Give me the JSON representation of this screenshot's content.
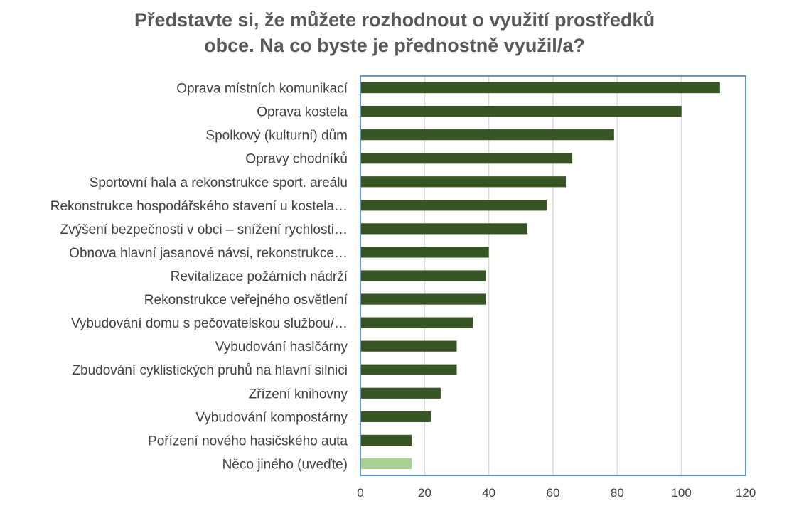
{
  "chart_data": {
    "type": "bar",
    "orientation": "horizontal",
    "title_lines": [
      "Představte si, že můžete rozhodnout o využití prostředků",
      "obce. Na co byste je přednostně využil/a?"
    ],
    "title": "Představte si, že můžete rozhodnout o využití prostředků obce. Na co byste je přednostně využil/a?",
    "xlabel": "",
    "ylabel": "",
    "categories": [
      "Oprava místních komunikací",
      "Oprava kostela",
      "Spolkový (kulturní) dům",
      "Opravy chodníků",
      "Sportovní hala a rekonstrukce sport. areálu",
      "Rekonstrukce hospodářského stavení u kostela…",
      "Zvýšení bezpečnosti v obci – snížení rychlosti…",
      "Obnova hlavní jasanové návsi, rekonstrukce…",
      "Revitalizace požárních nádrží",
      "Rekonstrukce veřejného osvětlení",
      "Vybudování domu s pečovatelskou službou/…",
      "Vybudování hasičárny",
      "Zbudování cyklistických pruhů na hlavní silnici",
      "Zřízení knihovny",
      "Vybudování kompostárny",
      "Pořízení nového hasičského auta",
      "Něco jiného (uveďte)"
    ],
    "values": [
      112,
      100,
      79,
      66,
      64,
      58,
      52,
      40,
      39,
      39,
      35,
      30,
      30,
      25,
      22,
      16,
      16
    ],
    "highlight_index": 16,
    "xlim": [
      0,
      120
    ],
    "xticks": [
      0,
      20,
      40,
      60,
      80,
      100,
      120
    ],
    "grid": "vertical",
    "legend": "none",
    "colors": {
      "bar": "#375623",
      "highlight_bar": "#a9d08e",
      "grid": "#d9d9d9",
      "axis_frame": "#2e75b6",
      "title": "#595959",
      "text": "#404040"
    }
  }
}
